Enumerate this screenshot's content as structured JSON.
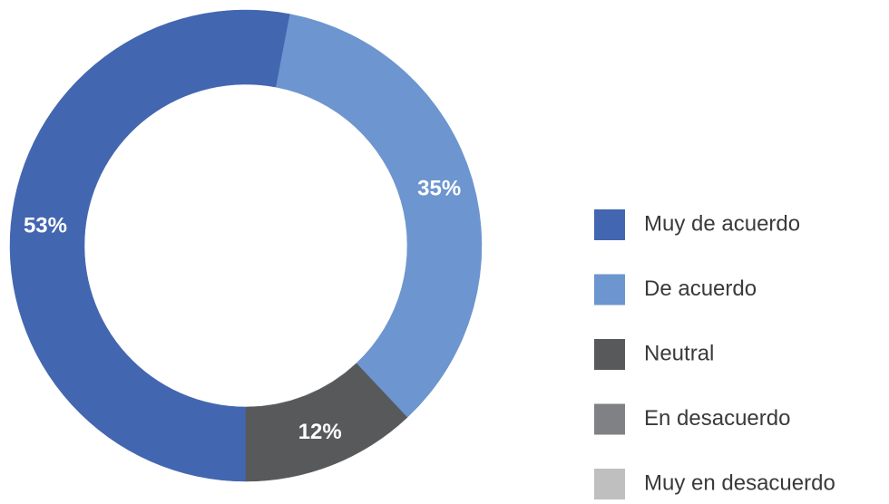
{
  "chart_data": {
    "type": "donut",
    "categories": [
      "Muy de acuerdo",
      "De acuerdo",
      "Neutral",
      "En desacuerdo",
      "Muy en desacuerdo"
    ],
    "values": [
      53,
      35,
      12,
      0,
      0
    ],
    "value_labels": [
      "53%",
      "35%",
      "12%",
      null,
      null
    ],
    "colors": [
      "#4366b0",
      "#6d95cf",
      "#58595b",
      "#808184",
      "#bfbfc0"
    ],
    "legend": "right"
  }
}
